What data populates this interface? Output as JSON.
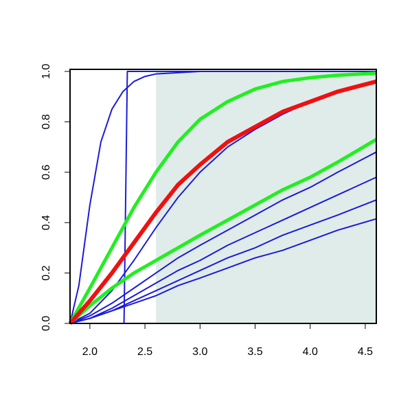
{
  "chart_data": {
    "type": "line",
    "xlim": [
      1.82,
      4.6
    ],
    "ylim": [
      0,
      1
    ],
    "xticks": [
      {
        "value": 2,
        "label": "2.0"
      },
      {
        "value": 2.5,
        "label": "2.5"
      },
      {
        "value": 3,
        "label": "3.0"
      },
      {
        "value": 3.5,
        "label": "3.5"
      },
      {
        "value": 4,
        "label": "4.0"
      },
      {
        "value": 4.5,
        "label": "4.5"
      }
    ],
    "yticks": [
      {
        "value": 0,
        "label": "0.0"
      },
      0.2,
      0.4,
      0.6,
      0.8,
      {
        "value": 1,
        "label": "1.0"
      }
    ],
    "shaded_x": [
      2.6,
      4.6
    ],
    "shade_color": "#e0ecea",
    "series": [
      {
        "color": "#1a1adc",
        "width": 2,
        "x": [
          1.82,
          1.9,
          2.0,
          2.1,
          2.2,
          2.3,
          2.4,
          2.5,
          2.6,
          3.0,
          4.6
        ],
        "values": [
          0,
          0.15,
          0.47,
          0.72,
          0.85,
          0.92,
          0.96,
          0.98,
          0.99,
          1,
          1
        ]
      },
      {
        "color": "#1a1adc",
        "width": 2,
        "x": [
          1.82,
          2.31,
          2.34,
          4.6
        ],
        "values": [
          0,
          0,
          1,
          1
        ]
      },
      {
        "color": "#1a1adc",
        "width": 2,
        "x": [
          1.82,
          2.0,
          2.2,
          2.4,
          2.6,
          2.8,
          3.0,
          3.25,
          3.5,
          3.75,
          4.0,
          4.25,
          4.6
        ],
        "values": [
          0,
          0.04,
          0.13,
          0.25,
          0.38,
          0.5,
          0.6,
          0.7,
          0.77,
          0.83,
          0.88,
          0.92,
          0.96
        ]
      },
      {
        "color": "#1a1adc",
        "width": 2,
        "x": [
          1.82,
          2.0,
          2.2,
          2.4,
          2.6,
          2.8,
          3.0,
          3.25,
          3.5,
          3.75,
          4.0,
          4.25,
          4.6
        ],
        "values": [
          0,
          0.03,
          0.08,
          0.14,
          0.2,
          0.26,
          0.31,
          0.37,
          0.43,
          0.49,
          0.54,
          0.6,
          0.68
        ]
      },
      {
        "color": "#1a1adc",
        "width": 2,
        "x": [
          1.82,
          2.0,
          2.2,
          2.4,
          2.6,
          2.8,
          3.0,
          3.25,
          3.5,
          3.75,
          4.0,
          4.25,
          4.6
        ],
        "values": [
          0,
          0.02,
          0.06,
          0.11,
          0.16,
          0.21,
          0.25,
          0.31,
          0.36,
          0.41,
          0.46,
          0.51,
          0.58
        ]
      },
      {
        "color": "#1a1adc",
        "width": 2,
        "x": [
          1.82,
          2.0,
          2.2,
          2.4,
          2.6,
          2.8,
          3.0,
          3.25,
          3.5,
          3.75,
          4.0,
          4.25,
          4.6
        ],
        "values": [
          0,
          0.02,
          0.05,
          0.09,
          0.13,
          0.17,
          0.21,
          0.26,
          0.3,
          0.35,
          0.39,
          0.43,
          0.49
        ]
      },
      {
        "color": "#1a1adc",
        "width": 2,
        "x": [
          1.82,
          2.0,
          2.2,
          2.4,
          2.6,
          2.8,
          3.0,
          3.25,
          3.5,
          3.75,
          4.0,
          4.25,
          4.6
        ],
        "values": [
          0,
          0.02,
          0.05,
          0.08,
          0.11,
          0.15,
          0.18,
          0.22,
          0.26,
          0.29,
          0.33,
          0.37,
          0.415
        ]
      },
      {
        "color": "#22ee22",
        "width": 5,
        "x": [
          1.82,
          2.0,
          2.2,
          2.4,
          2.6,
          2.8,
          3.0,
          3.25,
          3.5,
          3.75,
          4.0,
          4.25,
          4.6
        ],
        "values": [
          0,
          0.14,
          0.3,
          0.46,
          0.6,
          0.72,
          0.81,
          0.88,
          0.93,
          0.96,
          0.975,
          0.985,
          0.993
        ]
      },
      {
        "color": "#22ee22",
        "width": 5,
        "x": [
          1.82,
          2.0,
          2.2,
          2.4,
          2.6,
          2.8,
          3.0,
          3.25,
          3.5,
          3.75,
          4.0,
          4.25,
          4.6
        ],
        "values": [
          0,
          0.07,
          0.14,
          0.2,
          0.25,
          0.3,
          0.35,
          0.41,
          0.47,
          0.53,
          0.58,
          0.64,
          0.73
        ]
      },
      {
        "color": "#ee1111",
        "width": 6,
        "x": [
          1.82,
          2.0,
          2.2,
          2.4,
          2.6,
          2.8,
          3.0,
          3.25,
          3.5,
          3.75,
          4.0,
          4.25,
          4.6
        ],
        "values": [
          0,
          0.09,
          0.2,
          0.32,
          0.44,
          0.55,
          0.63,
          0.72,
          0.78,
          0.84,
          0.88,
          0.92,
          0.96
        ]
      }
    ]
  }
}
